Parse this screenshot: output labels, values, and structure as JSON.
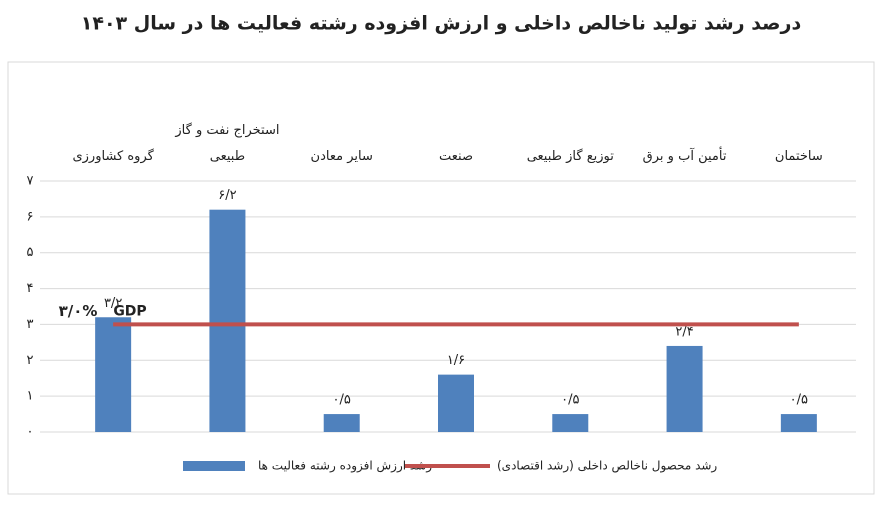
{
  "chart_data": {
    "type": "bar",
    "title": "درصد رشد تولید ناخالص داخلی و ارزش افزوده رشته فعالیت ها در سال ۱۴۰۳",
    "categories": [
      "گروه کشاورزی",
      "استخراج نفت و گاز طبیعی",
      "سایر معادن",
      "صنعت",
      "توزیع گاز طبیعی",
      "تأمین آب و برق",
      "ساختمان"
    ],
    "series": [
      {
        "name": "رشد ارزش افزوده رشته فعالیت ها",
        "type": "bar",
        "color": "#4f81bd",
        "values": [
          3.2,
          6.2,
          0.5,
          1.6,
          0.5,
          2.4,
          0.5
        ],
        "value_labels": [
          "۳/۲",
          "۶/۲",
          "۰/۵",
          "۱/۶",
          "۰/۵",
          "۲/۴",
          "۰/۵"
        ]
      },
      {
        "name": "رشد محصول ناخالص داخلی (رشد اقتصادی)",
        "type": "line",
        "color": "#c0504d",
        "values": [
          3,
          3,
          3,
          3,
          3,
          3,
          3
        ]
      }
    ],
    "annotations": [
      "۳/۰%",
      "GDP"
    ],
    "ylim": [
      0,
      7
    ],
    "yticks": [
      {
        "value": 0,
        "label": "۰"
      },
      {
        "value": 1,
        "label": "۱"
      },
      {
        "value": 2,
        "label": "۲"
      },
      {
        "value": 3,
        "label": "۳"
      },
      {
        "value": 4,
        "label": "۴"
      },
      {
        "value": 5,
        "label": "۵"
      },
      {
        "value": 6,
        "label": "۶"
      },
      {
        "value": 7,
        "label": "۷"
      }
    ],
    "grid": true
  }
}
